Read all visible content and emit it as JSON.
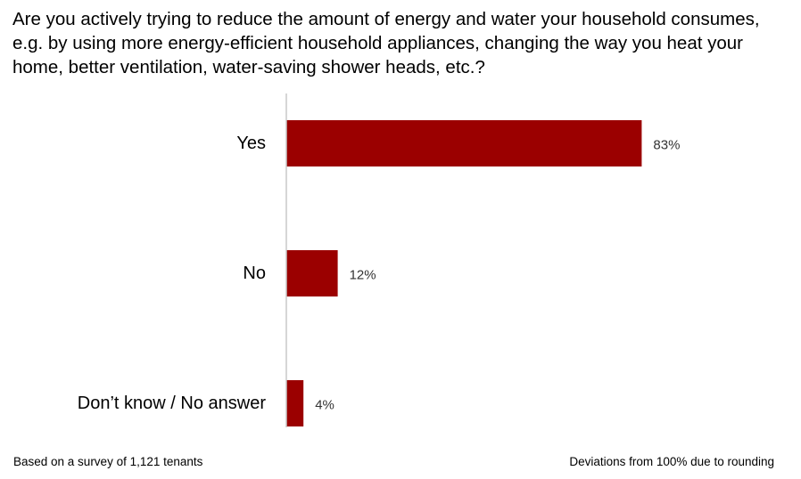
{
  "chart_data": {
    "type": "bar",
    "orientation": "horizontal",
    "title": "Are you actively trying to reduce the amount of energy and water your household consumes, e.g. by using more energy-efficient household appliances, changing the way you heat your home, better ventilation, water-saving shower heads, etc.?",
    "categories": [
      "Yes",
      "No",
      "Don’t know / No answer"
    ],
    "values": [
      83,
      12,
      4
    ],
    "value_labels": [
      "83%",
      "12%",
      "4%"
    ],
    "unit": "%",
    "xlim": [
      0,
      100
    ],
    "grid": false,
    "legend": "none",
    "bar_color": "#9b0000",
    "axis_color": "#c8c8c8"
  },
  "footer": {
    "source_note": "Based on a survey of 1,121 tenants",
    "rounding_note": "Deviations from 100% due to rounding"
  }
}
